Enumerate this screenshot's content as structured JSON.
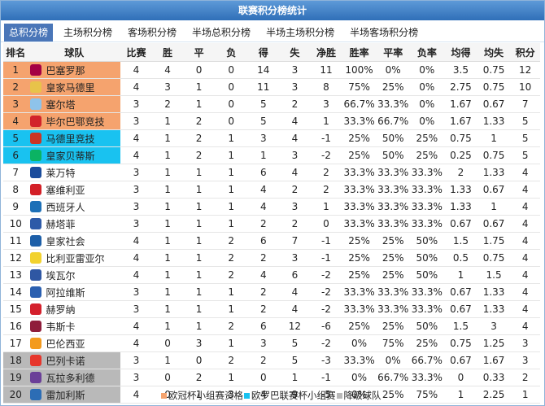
{
  "title": "联赛积分榜统计",
  "tabs": [
    "总积分榜",
    "主场积分榜",
    "客场积分榜",
    "半场总积分榜",
    "半场主场积分榜",
    "半场客场积分榜"
  ],
  "active_tab": 0,
  "headers": [
    "排名",
    "球队",
    "比赛",
    "胜",
    "平",
    "负",
    "得",
    "失",
    "净胜",
    "胜率",
    "平率",
    "负率",
    "均得",
    "均失",
    "积分"
  ],
  "colors": {
    "champions": "#f5a36e",
    "europa": "#19c2f0",
    "relegation": "#b9b9b9"
  },
  "rows": [
    {
      "rank": "1",
      "team": "巴塞罗那",
      "logo": "#a50044",
      "zone": "champions",
      "cells": [
        "4",
        "4",
        "0",
        "0",
        "14",
        "3",
        "11",
        "100%",
        "0%",
        "0%",
        "3.5",
        "0.75",
        "12"
      ]
    },
    {
      "rank": "2",
      "team": "皇家马德里",
      "logo": "#e8c34a",
      "zone": "champions",
      "cells": [
        "4",
        "3",
        "1",
        "0",
        "11",
        "3",
        "8",
        "75%",
        "25%",
        "0%",
        "2.75",
        "0.75",
        "10"
      ]
    },
    {
      "rank": "3",
      "team": "塞尔塔",
      "logo": "#8ec3ea",
      "zone": "champions",
      "cells": [
        "3",
        "2",
        "1",
        "0",
        "5",
        "2",
        "3",
        "66.7%",
        "33.3%",
        "0%",
        "1.67",
        "0.67",
        "7"
      ]
    },
    {
      "rank": "4",
      "team": "毕尔巴鄂竞技",
      "logo": "#d2232a",
      "zone": "champions",
      "cells": [
        "3",
        "1",
        "2",
        "0",
        "5",
        "4",
        "1",
        "33.3%",
        "66.7%",
        "0%",
        "1.67",
        "1.33",
        "5"
      ]
    },
    {
      "rank": "5",
      "team": "马德里竞技",
      "logo": "#cb3524",
      "zone": "europa",
      "cells": [
        "4",
        "1",
        "2",
        "1",
        "3",
        "4",
        "-1",
        "25%",
        "50%",
        "25%",
        "0.75",
        "1",
        "5"
      ]
    },
    {
      "rank": "6",
      "team": "皇家贝蒂斯",
      "logo": "#0bb363",
      "zone": "europa",
      "cells": [
        "4",
        "1",
        "2",
        "1",
        "1",
        "3",
        "-2",
        "25%",
        "50%",
        "25%",
        "0.25",
        "0.75",
        "5"
      ]
    },
    {
      "rank": "7",
      "team": "莱万特",
      "logo": "#1a4c9c",
      "zone": "",
      "cells": [
        "3",
        "1",
        "1",
        "1",
        "6",
        "4",
        "2",
        "33.3%",
        "33.3%",
        "33.3%",
        "2",
        "1.33",
        "4"
      ]
    },
    {
      "rank": "8",
      "team": "塞维利亚",
      "logo": "#d31f26",
      "zone": "",
      "cells": [
        "3",
        "1",
        "1",
        "1",
        "4",
        "2",
        "2",
        "33.3%",
        "33.3%",
        "33.3%",
        "1.33",
        "0.67",
        "4"
      ]
    },
    {
      "rank": "9",
      "team": "西班牙人",
      "logo": "#1d70b7",
      "zone": "",
      "cells": [
        "3",
        "1",
        "1",
        "1",
        "4",
        "3",
        "1",
        "33.3%",
        "33.3%",
        "33.3%",
        "1.33",
        "1",
        "4"
      ]
    },
    {
      "rank": "10",
      "team": "赫塔菲",
      "logo": "#2d5aa8",
      "zone": "",
      "cells": [
        "3",
        "1",
        "1",
        "1",
        "2",
        "2",
        "0",
        "33.3%",
        "33.3%",
        "33.3%",
        "0.67",
        "0.67",
        "4"
      ]
    },
    {
      "rank": "11",
      "team": "皇家社会",
      "logo": "#1d5fa8",
      "zone": "",
      "cells": [
        "4",
        "1",
        "1",
        "2",
        "6",
        "7",
        "-1",
        "25%",
        "25%",
        "50%",
        "1.5",
        "1.75",
        "4"
      ]
    },
    {
      "rank": "12",
      "team": "比利亚雷亚尔",
      "logo": "#f2d22e",
      "zone": "",
      "cells": [
        "4",
        "1",
        "1",
        "2",
        "2",
        "3",
        "-1",
        "25%",
        "25%",
        "50%",
        "0.5",
        "0.75",
        "4"
      ]
    },
    {
      "rank": "13",
      "team": "埃瓦尔",
      "logo": "#2f57a3",
      "zone": "",
      "cells": [
        "4",
        "1",
        "1",
        "2",
        "4",
        "6",
        "-2",
        "25%",
        "25%",
        "50%",
        "1",
        "1.5",
        "4"
      ]
    },
    {
      "rank": "14",
      "team": "阿拉维斯",
      "logo": "#2a5fb0",
      "zone": "",
      "cells": [
        "3",
        "1",
        "1",
        "1",
        "2",
        "4",
        "-2",
        "33.3%",
        "33.3%",
        "33.3%",
        "0.67",
        "1.33",
        "4"
      ]
    },
    {
      "rank": "15",
      "team": "赫罗纳",
      "logo": "#d4202c",
      "zone": "",
      "cells": [
        "3",
        "1",
        "1",
        "1",
        "2",
        "4",
        "-2",
        "33.3%",
        "33.3%",
        "33.3%",
        "0.67",
        "1.33",
        "4"
      ]
    },
    {
      "rank": "16",
      "team": "韦斯卡",
      "logo": "#8f1d3b",
      "zone": "",
      "cells": [
        "4",
        "1",
        "1",
        "2",
        "6",
        "12",
        "-6",
        "25%",
        "25%",
        "50%",
        "1.5",
        "3",
        "4"
      ]
    },
    {
      "rank": "17",
      "team": "巴伦西亚",
      "logo": "#f39a1e",
      "zone": "",
      "cells": [
        "4",
        "0",
        "3",
        "1",
        "3",
        "5",
        "-2",
        "0%",
        "75%",
        "25%",
        "0.75",
        "1.25",
        "3"
      ]
    },
    {
      "rank": "18",
      "team": "巴列卡诺",
      "logo": "#e6362c",
      "zone": "relegation",
      "cells": [
        "3",
        "1",
        "0",
        "2",
        "2",
        "5",
        "-3",
        "33.3%",
        "0%",
        "66.7%",
        "0.67",
        "1.67",
        "3"
      ]
    },
    {
      "rank": "19",
      "team": "瓦拉多利德",
      "logo": "#6b3f98",
      "zone": "relegation",
      "cells": [
        "3",
        "0",
        "2",
        "1",
        "0",
        "1",
        "-1",
        "0%",
        "66.7%",
        "33.3%",
        "0",
        "0.33",
        "2"
      ]
    },
    {
      "rank": "20",
      "team": "雷加利斯",
      "logo": "#2c6db5",
      "zone": "relegation",
      "cells": [
        "4",
        "0",
        "1",
        "3",
        "4",
        "9",
        "-5",
        "0%",
        "25%",
        "75%",
        "1",
        "2.25",
        "1"
      ]
    }
  ],
  "legend": [
    {
      "label": "欧冠杯小组赛资格",
      "zone": "champions"
    },
    {
      "label": "欧罗巴联赛杯小组赛",
      "zone": "europa"
    },
    {
      "label": "降级球队",
      "zone": "relegation"
    }
  ]
}
